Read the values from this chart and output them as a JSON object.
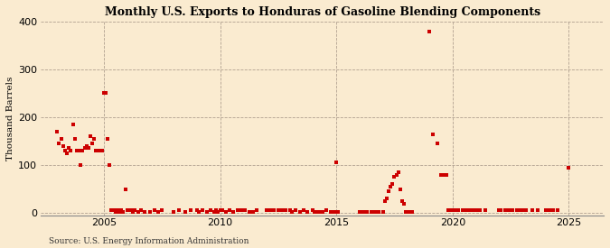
{
  "title": "Monthly U.S. Exports to Honduras of Gasoline Blending Components",
  "ylabel": "Thousand Barrels",
  "source": "Source: U.S. Energy Information Administration",
  "background_color": "#faebd0",
  "dot_color": "#cc0000",
  "xlim": [
    2002.3,
    2026.5
  ],
  "ylim": [
    -5,
    400
  ],
  "yticks": [
    0,
    100,
    200,
    300,
    400
  ],
  "xticks": [
    2005,
    2010,
    2015,
    2020,
    2025
  ],
  "data_x": [
    2003.0,
    2003.08,
    2003.17,
    2003.25,
    2003.33,
    2003.42,
    2003.5,
    2003.58,
    2003.67,
    2003.75,
    2003.83,
    2003.92,
    2004.0,
    2004.08,
    2004.17,
    2004.25,
    2004.33,
    2004.42,
    2004.5,
    2004.58,
    2004.67,
    2004.75,
    2004.83,
    2004.92,
    2005.0,
    2005.08,
    2005.17,
    2005.25,
    2005.33,
    2005.42,
    2005.5,
    2005.58,
    2005.67,
    2005.75,
    2005.83,
    2005.92,
    2006.0,
    2006.08,
    2006.17,
    2006.25,
    2006.33,
    2006.5,
    2006.58,
    2006.75,
    2007.0,
    2007.17,
    2007.33,
    2007.5,
    2008.0,
    2008.25,
    2008.5,
    2008.75,
    2009.0,
    2009.08,
    2009.25,
    2009.42,
    2009.58,
    2009.75,
    2009.83,
    2009.92,
    2010.0,
    2010.08,
    2010.25,
    2010.42,
    2010.58,
    2010.75,
    2010.83,
    2010.92,
    2011.0,
    2011.08,
    2011.25,
    2011.42,
    2011.58,
    2012.0,
    2012.17,
    2012.33,
    2012.5,
    2012.67,
    2012.83,
    2013.0,
    2013.08,
    2013.25,
    2013.42,
    2013.58,
    2013.75,
    2014.0,
    2014.08,
    2014.17,
    2014.25,
    2014.42,
    2014.58,
    2014.75,
    2014.83,
    2014.92,
    2015.0,
    2015.08,
    2016.0,
    2016.17,
    2016.33,
    2016.5,
    2016.67,
    2016.83,
    2017.0,
    2017.08,
    2017.17,
    2017.25,
    2017.33,
    2017.42,
    2017.5,
    2017.58,
    2017.67,
    2017.75,
    2017.83,
    2017.92,
    2018.0,
    2018.08,
    2018.17,
    2018.25,
    2019.0,
    2019.17,
    2019.33,
    2019.5,
    2019.67,
    2019.75,
    2019.83,
    2019.92,
    2020.0,
    2020.08,
    2020.25,
    2020.42,
    2020.58,
    2020.75,
    2020.83,
    2020.92,
    2021.0,
    2021.17,
    2021.42,
    2022.0,
    2022.08,
    2022.25,
    2022.42,
    2022.58,
    2022.75,
    2022.83,
    2022.92,
    2023.0,
    2023.17,
    2023.42,
    2023.67,
    2024.0,
    2024.17,
    2024.33,
    2024.5,
    2025.0
  ],
  "data_y": [
    170,
    145,
    155,
    140,
    130,
    125,
    135,
    130,
    185,
    155,
    130,
    130,
    100,
    130,
    135,
    140,
    135,
    160,
    145,
    155,
    130,
    130,
    130,
    130,
    250,
    250,
    155,
    100,
    5,
    5,
    3,
    5,
    3,
    5,
    3,
    50,
    5,
    5,
    5,
    3,
    5,
    3,
    5,
    3,
    3,
    5,
    3,
    5,
    3,
    5,
    3,
    5,
    5,
    3,
    5,
    3,
    5,
    3,
    5,
    3,
    5,
    5,
    3,
    5,
    3,
    5,
    5,
    5,
    5,
    5,
    3,
    3,
    5,
    5,
    5,
    5,
    5,
    5,
    5,
    5,
    3,
    5,
    3,
    5,
    3,
    5,
    3,
    3,
    3,
    3,
    5,
    3,
    3,
    3,
    105,
    3,
    3,
    3,
    3,
    3,
    3,
    3,
    3,
    25,
    30,
    45,
    55,
    60,
    75,
    80,
    85,
    50,
    25,
    20,
    3,
    3,
    3,
    3,
    380,
    165,
    145,
    80,
    80,
    80,
    5,
    5,
    5,
    5,
    5,
    5,
    5,
    5,
    5,
    5,
    5,
    5,
    5,
    5,
    5,
    5,
    5,
    5,
    5,
    5,
    5,
    5,
    5,
    5,
    5,
    5,
    5,
    5,
    5,
    95
  ]
}
